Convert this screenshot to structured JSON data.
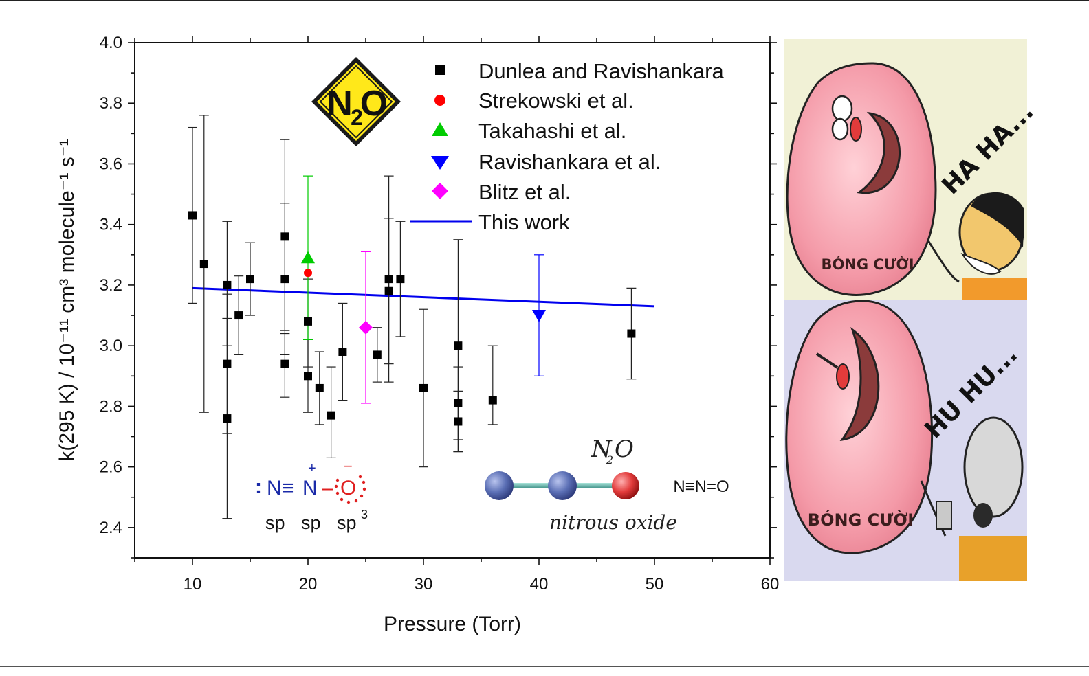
{
  "chart_data": {
    "type": "scatter",
    "xlabel": "Pressure (Torr)",
    "ylabel": "k(295 K) / 10⁻¹¹ cm³ molecule⁻¹ s⁻¹",
    "xlim": [
      5,
      60
    ],
    "ylim": [
      2.3,
      4.0
    ],
    "xticks": [
      10,
      20,
      30,
      40,
      50,
      60
    ],
    "yticks": [
      2.4,
      2.6,
      2.8,
      3.0,
      3.2,
      3.4,
      3.6,
      3.8,
      4.0
    ],
    "grid": false,
    "legend_position": "top-right",
    "series": [
      {
        "name": "Dunlea and Ravishankara",
        "marker": "square",
        "color": "#000000",
        "points": [
          {
            "x": 10,
            "y": 3.43,
            "lo": 3.14,
            "hi": 3.72
          },
          {
            "x": 11,
            "y": 3.27,
            "lo": 2.78,
            "hi": 3.76
          },
          {
            "x": 13,
            "y": 3.2,
            "lo": 3.0,
            "hi": 3.41
          },
          {
            "x": 13,
            "y": 2.94,
            "lo": 2.71,
            "hi": 3.17
          },
          {
            "x": 13,
            "y": 2.76,
            "lo": 2.43,
            "hi": 3.09
          },
          {
            "x": 14,
            "y": 3.1,
            "lo": 2.97,
            "hi": 3.23
          },
          {
            "x": 15,
            "y": 3.22,
            "lo": 3.1,
            "hi": 3.34
          },
          {
            "x": 18,
            "y": 3.36,
            "lo": 3.05,
            "hi": 3.68
          },
          {
            "x": 18,
            "y": 3.22,
            "lo": 2.97,
            "hi": 3.47
          },
          {
            "x": 18,
            "y": 2.94,
            "lo": 2.83,
            "hi": 3.04
          },
          {
            "x": 20,
            "y": 3.08,
            "lo": 2.93,
            "hi": 3.22
          },
          {
            "x": 20,
            "y": 2.9,
            "lo": 2.78,
            "hi": 3.02
          },
          {
            "x": 21,
            "y": 2.86,
            "lo": 2.74,
            "hi": 2.98
          },
          {
            "x": 22,
            "y": 2.77,
            "lo": 2.63,
            "hi": 2.93
          },
          {
            "x": 23,
            "y": 2.98,
            "lo": 2.82,
            "hi": 3.14
          },
          {
            "x": 26,
            "y": 2.97,
            "lo": 2.88,
            "hi": 3.06
          },
          {
            "x": 27,
            "y": 3.22,
            "lo": 2.88,
            "hi": 3.56
          },
          {
            "x": 27,
            "y": 3.18,
            "lo": 2.94,
            "hi": 3.42
          },
          {
            "x": 28,
            "y": 3.22,
            "lo": 3.03,
            "hi": 3.41
          },
          {
            "x": 30,
            "y": 2.86,
            "lo": 2.6,
            "hi": 3.12
          },
          {
            "x": 33,
            "y": 3.0,
            "lo": 2.65,
            "hi": 3.35
          },
          {
            "x": 33,
            "y": 2.81,
            "lo": 2.69,
            "hi": 2.93
          },
          {
            "x": 33,
            "y": 2.75,
            "lo": 2.65,
            "hi": 2.85
          },
          {
            "x": 36,
            "y": 2.82,
            "lo": 2.74,
            "hi": 3.0
          },
          {
            "x": 48,
            "y": 3.04,
            "lo": 2.89,
            "hi": 3.19
          }
        ]
      },
      {
        "name": "Strekowski et al.",
        "marker": "circle",
        "color": "#ff0000",
        "points": [
          {
            "x": 20,
            "y": 3.24
          }
        ]
      },
      {
        "name": "Takahashi et al.",
        "marker": "triangle-up",
        "color": "#00cc00",
        "points": [
          {
            "x": 20,
            "y": 3.29,
            "lo": 3.02,
            "hi": 3.56
          }
        ]
      },
      {
        "name": "Ravishankara et al.",
        "marker": "triangle-down",
        "color": "#0000ff",
        "points": [
          {
            "x": 40,
            "y": 3.1,
            "lo": 2.9,
            "hi": 3.3
          }
        ]
      },
      {
        "name": "Blitz et al.",
        "marker": "diamond",
        "color": "#ff00ff",
        "points": [
          {
            "x": 25,
            "y": 3.06,
            "lo": 2.81,
            "hi": 3.31
          }
        ]
      },
      {
        "name": "This work",
        "marker": "line",
        "color": "#0000ee",
        "points": [
          {
            "x": 10,
            "y": 3.19
          },
          {
            "x": 50,
            "y": 3.13
          }
        ]
      }
    ]
  },
  "annotations": {
    "badge": {
      "letter1": "N",
      "subscript": "2",
      "letter2": "O"
    },
    "lewis": {
      "colon": ":",
      "n1": "N",
      "triple": "≡",
      "n2": "N",
      "dash": "–",
      "o": "O",
      "plus": "+",
      "minus": "−",
      "hyb1": "sp",
      "hyb2": "sp",
      "hyb3": "sp",
      "hyb3_sup": "3"
    },
    "molecule": {
      "formula_n": "N",
      "formula_sub": "2",
      "formula_o": "O",
      "caption": "nitrous oxide",
      "structure": "N≡N=O",
      "atom_colors": [
        "#5b6fb5",
        "#5b6fb5",
        "#e23b3b"
      ]
    }
  },
  "cartoon": {
    "top": {
      "speech": "HA HA...",
      "balloon_label": "BÓNG CƯỜI"
    },
    "bottom": {
      "speech": "HU HU...",
      "balloon_label": "BÓNG CƯỜI"
    }
  }
}
